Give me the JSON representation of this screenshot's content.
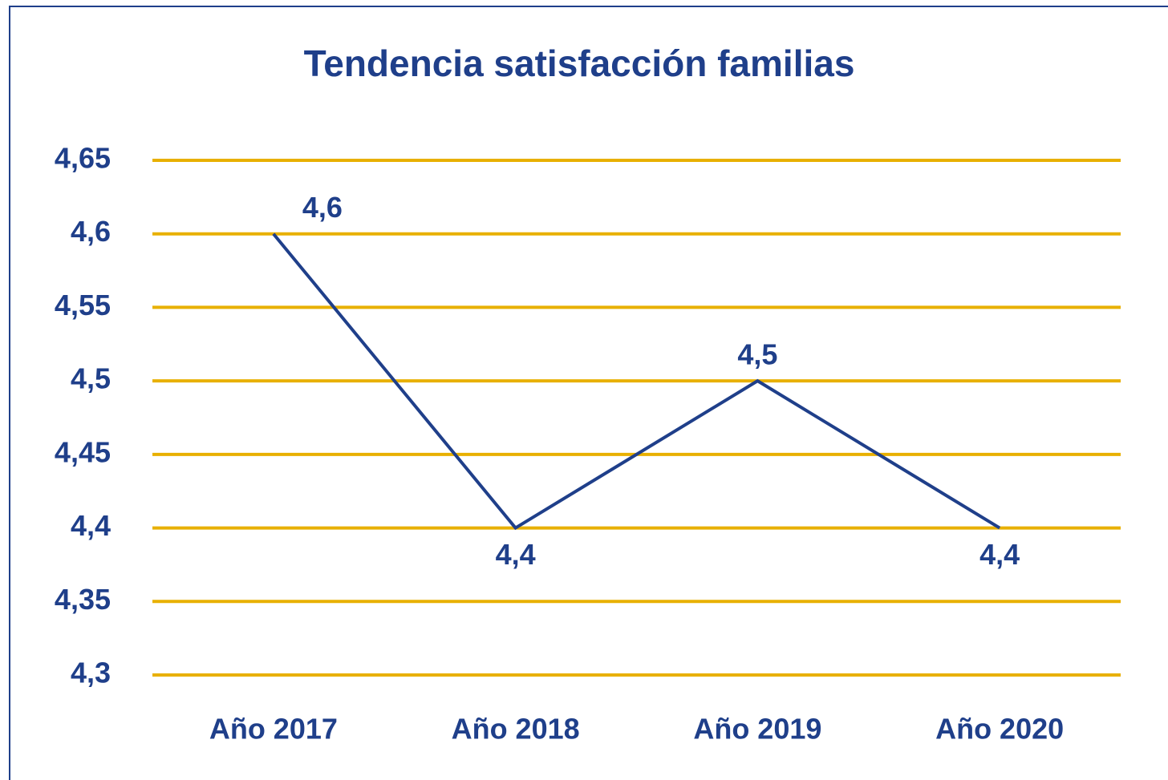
{
  "chart_data": {
    "type": "line",
    "title": "Tendencia satisfacción familias",
    "categories": [
      "Año 2017",
      "Año 2018",
      "Año 2019",
      "Año 2020"
    ],
    "values": [
      4.6,
      4.4,
      4.5,
      4.4
    ],
    "value_labels": [
      "4,6",
      "4,4",
      "4,5",
      "4,4"
    ],
    "color": "#1f3f8a",
    "grid_color": "#e8b000",
    "grid": true,
    "ylim": [
      4.3,
      4.65
    ],
    "yticks": [
      {
        "value": 4.3,
        "label": "4,3"
      },
      {
        "value": 4.35,
        "label": "4,35"
      },
      {
        "value": 4.4,
        "label": "4,4"
      },
      {
        "value": 4.45,
        "label": "4,45"
      },
      {
        "value": 4.5,
        "label": "4,5"
      },
      {
        "value": 4.55,
        "label": "4,55"
      },
      {
        "value": 4.6,
        "label": "4,6"
      },
      {
        "value": 4.65,
        "label": "4,65"
      }
    ]
  }
}
